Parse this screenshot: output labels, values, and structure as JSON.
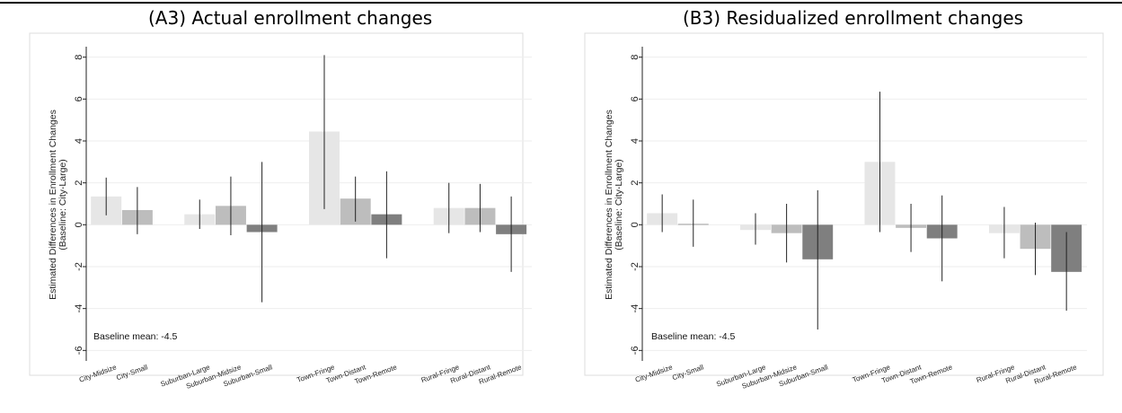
{
  "chart_data": [
    {
      "type": "bar",
      "title": "(A3) Actual enrollment changes",
      "ylabel": "Estimated Differences in Enrollment Changes",
      "ylabel2": "(Baseline: City-Large)",
      "ylim": [
        -6.5,
        8.5
      ],
      "yticks": [
        -6,
        -4,
        -2,
        0,
        2,
        4,
        6,
        8
      ],
      "grid": true,
      "note": "Baseline mean: -4.5",
      "categories": [
        "City-Midsize",
        "City-Small",
        "Suburban-Large",
        "Suburban-Midsize",
        "Suburban-Small",
        "Town-Fringe",
        "Town-Distant",
        "Town-Remote",
        "Rural-Fringe",
        "Rural-Distant",
        "Rural-Remote"
      ],
      "groups": [
        0,
        0,
        1,
        1,
        1,
        2,
        2,
        2,
        3,
        3,
        3
      ],
      "shade": [
        0,
        1,
        0,
        1,
        2,
        0,
        1,
        2,
        0,
        1,
        2
      ],
      "colors": [
        "#e6e6e6",
        "#bdbdbd",
        "#7f7f7f"
      ],
      "values": [
        1.35,
        0.7,
        0.5,
        0.9,
        -0.35,
        4.45,
        1.25,
        0.5,
        0.8,
        0.8,
        -0.45
      ],
      "ci_low": [
        0.45,
        -0.45,
        -0.2,
        -0.5,
        -3.7,
        0.75,
        0.15,
        -1.6,
        -0.4,
        -0.35,
        -2.25
      ],
      "ci_high": [
        2.25,
        1.8,
        1.2,
        2.3,
        3.0,
        8.1,
        2.3,
        2.55,
        2.0,
        1.95,
        1.35
      ]
    },
    {
      "type": "bar",
      "title": "(B3) Residualized enrollment changes",
      "ylabel": "Estimated Differences in Enrollment Changes",
      "ylabel2": "(Baseline: City-Large)",
      "ylim": [
        -6.5,
        8.5
      ],
      "yticks": [
        -6,
        -4,
        -2,
        0,
        2,
        4,
        6,
        8
      ],
      "grid": true,
      "note": "Baseline mean: -4.5",
      "categories": [
        "City-Midsize",
        "City-Small",
        "Suburban-Large",
        "Suburban-Midsize",
        "Suburban-Small",
        "Town-Fringe",
        "Town-Distant",
        "Town-Remote",
        "Rural-Fringe",
        "Rural-Distant",
        "Rural-Remote"
      ],
      "groups": [
        0,
        0,
        1,
        1,
        1,
        2,
        2,
        2,
        3,
        3,
        3
      ],
      "shade": [
        0,
        1,
        0,
        1,
        2,
        0,
        1,
        2,
        0,
        1,
        2
      ],
      "colors": [
        "#e6e6e6",
        "#bdbdbd",
        "#7f7f7f"
      ],
      "values": [
        0.55,
        0.05,
        -0.25,
        -0.4,
        -1.65,
        3.0,
        -0.15,
        -0.65,
        -0.4,
        -1.15,
        -2.25
      ],
      "ci_low": [
        -0.35,
        -1.05,
        -0.95,
        -1.8,
        -5.0,
        -0.35,
        -1.3,
        -2.7,
        -1.6,
        -2.4,
        -4.1
      ],
      "ci_high": [
        1.45,
        1.2,
        0.55,
        1.0,
        1.65,
        6.35,
        1.0,
        1.4,
        0.85,
        0.1,
        -0.35
      ]
    }
  ]
}
